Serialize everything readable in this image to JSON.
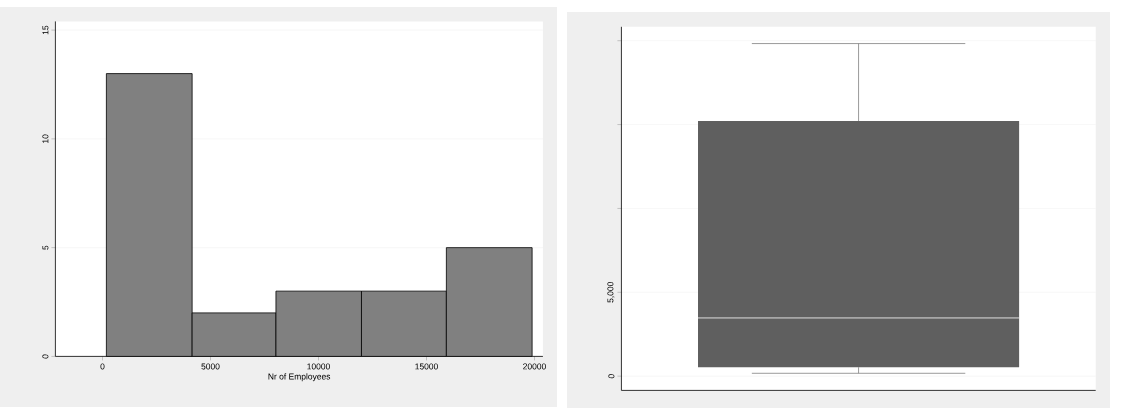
{
  "chart_data": [
    {
      "type": "histogram",
      "xlabel": "Nr of Employees",
      "bins": [
        180,
        4150,
        8030,
        11990,
        15920,
        19890
      ],
      "values": [
        13,
        2,
        3,
        3,
        5
      ],
      "color": "#808080",
      "xlim": [
        -2180,
        20390
      ],
      "ylim": [
        0,
        15.4
      ],
      "xticks": [
        0,
        5000,
        10000,
        15000,
        20000
      ],
      "yticks": [
        0,
        5,
        10,
        15
      ],
      "grid": "y"
    },
    {
      "type": "box",
      "categories": [
        null
      ],
      "color": "#5f5f5f",
      "boxes": [
        {
          "low": 170,
          "q1": 530,
          "median": 3470,
          "q3": 15210,
          "high": 19830
        }
      ],
      "ylim": [
        -850,
        20830
      ],
      "yticks": [
        0,
        {
          "value": 5000,
          "label": "5,000"
        },
        {
          "value": 10000,
          "label": null
        },
        {
          "value": 15000,
          "label": null
        },
        {
          "value": 20000,
          "label": null
        }
      ],
      "grid": "y",
      "tick_labels": "y"
    }
  ]
}
